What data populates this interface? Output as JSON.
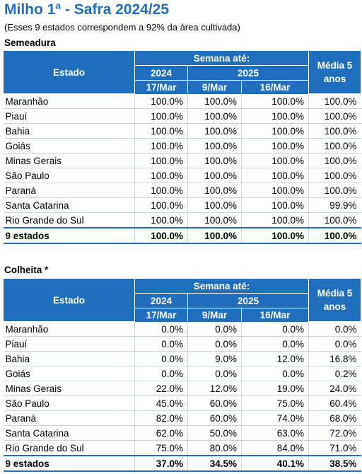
{
  "header": {
    "title": "Milho 1ª - Safra 2024/25",
    "subtitle": "(Esses 9 estados correspondem a 92% da área cultivada)"
  },
  "table_header": {
    "estado": "Estado",
    "semana_ate": "Semana até:",
    "year_2024": "2024",
    "year_2025": "2025",
    "date_2024": "17/Mar",
    "date_2025_a": "9/Mar",
    "date_2025_b": "16/Mar",
    "media_line1": "Média  5",
    "media_line2": "anos"
  },
  "semeadura": {
    "title": "Semeadura",
    "rows": [
      {
        "estado": "Maranhão",
        "v2024": "100.0%",
        "v2025a": "100.0%",
        "v2025b": "100.0%",
        "media": "100.0%"
      },
      {
        "estado": "Piauí",
        "v2024": "100.0%",
        "v2025a": "100.0%",
        "v2025b": "100.0%",
        "media": "100.0%"
      },
      {
        "estado": "Bahia",
        "v2024": "100.0%",
        "v2025a": "100.0%",
        "v2025b": "100.0%",
        "media": "100.0%"
      },
      {
        "estado": "Goiás",
        "v2024": "100.0%",
        "v2025a": "100.0%",
        "v2025b": "100.0%",
        "media": "100.0%"
      },
      {
        "estado": "Minas Gerais",
        "v2024": "100.0%",
        "v2025a": "100.0%",
        "v2025b": "100.0%",
        "media": "100.0%"
      },
      {
        "estado": "São Paulo",
        "v2024": "100.0%",
        "v2025a": "100.0%",
        "v2025b": "100.0%",
        "media": "100.0%"
      },
      {
        "estado": "Paraná",
        "v2024": "100.0%",
        "v2025a": "100.0%",
        "v2025b": "100.0%",
        "media": "100.0%"
      },
      {
        "estado": "Santa Catarina",
        "v2024": "100.0%",
        "v2025a": "100.0%",
        "v2025b": "100.0%",
        "media": "99.9%"
      },
      {
        "estado": "Rio Grande do Sul",
        "v2024": "100.0%",
        "v2025a": "100.0%",
        "v2025b": "100.0%",
        "media": "100.0%"
      }
    ],
    "total": {
      "estado": "9 estados",
      "v2024": "100.0%",
      "v2025a": "100.0%",
      "v2025b": "100.0%",
      "media": "100.0%"
    }
  },
  "colheita": {
    "title": "Colheita *",
    "rows": [
      {
        "estado": "Maranhão",
        "v2024": "0.0%",
        "v2025a": "0.0%",
        "v2025b": "0.0%",
        "media": "0.0%"
      },
      {
        "estado": "Piauí",
        "v2024": "0.0%",
        "v2025a": "0.0%",
        "v2025b": "0.0%",
        "media": "0.0%"
      },
      {
        "estado": "Bahia",
        "v2024": "0.0%",
        "v2025a": "9.0%",
        "v2025b": "12.0%",
        "media": "16.8%"
      },
      {
        "estado": "Goiás",
        "v2024": "0.0%",
        "v2025a": "0.0%",
        "v2025b": "0.0%",
        "media": "0.2%"
      },
      {
        "estado": "Minas Gerais",
        "v2024": "22.0%",
        "v2025a": "12.0%",
        "v2025b": "19.0%",
        "media": "24.0%"
      },
      {
        "estado": "São Paulo",
        "v2024": "45.0%",
        "v2025a": "60.0%",
        "v2025b": "75.0%",
        "media": "60.4%"
      },
      {
        "estado": "Paraná",
        "v2024": "82.0%",
        "v2025a": "60.0%",
        "v2025b": "74.0%",
        "media": "68.0%"
      },
      {
        "estado": "Santa Catarina",
        "v2024": "62.0%",
        "v2025a": "50.0%",
        "v2025b": "63.0%",
        "media": "72.0%"
      },
      {
        "estado": "Rio Grande do Sul",
        "v2024": "75.0%",
        "v2025a": "80.0%",
        "v2025b": "84.0%",
        "media": "71.0%"
      }
    ],
    "total": {
      "estado": "9 estados",
      "v2024": "37.0%",
      "v2025a": "34.5%",
      "v2025b": "40.1%",
      "media": "38.5%"
    }
  }
}
